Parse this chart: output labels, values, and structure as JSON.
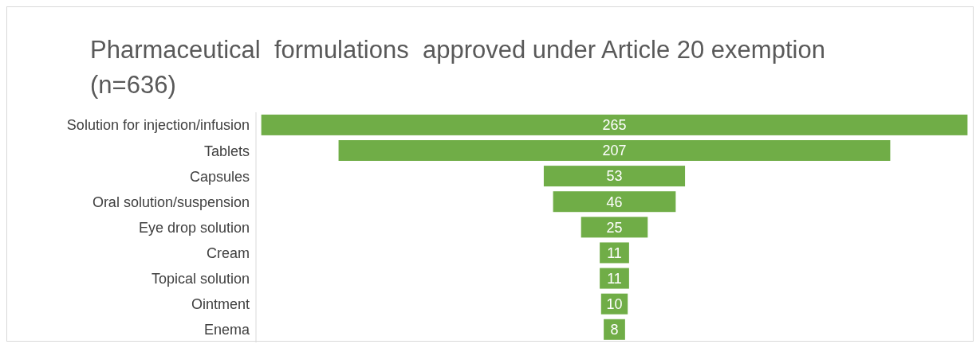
{
  "chart_data": {
    "type": "other",
    "title": "Pharmaceutical  formulations  approved under Article 20 exemption (n=636)",
    "categories": [
      "Solution for injection/infusion",
      "Tablets",
      "Capsules",
      "Oral solution/suspension",
      "Eye drop solution",
      "Cream",
      "Topical solution",
      "Ointment",
      "Enema"
    ],
    "values": [
      265,
      207,
      53,
      46,
      25,
      11,
      11,
      10,
      8
    ],
    "color": "#70ad47",
    "data_labels": true
  }
}
